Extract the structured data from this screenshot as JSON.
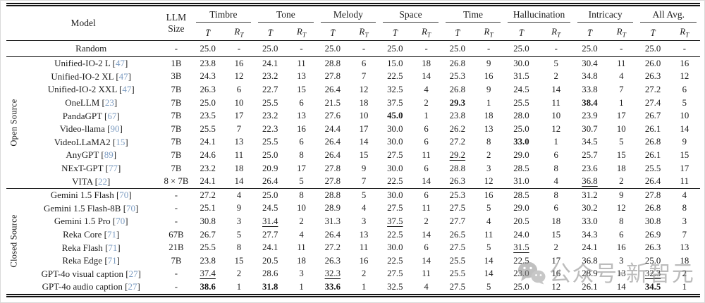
{
  "header": {
    "model": "Model",
    "llm1": "LLM",
    "llm2": "Size",
    "tbar": "T̄",
    "rmain": "R",
    "rsub": "T",
    "groups": [
      "Timbre",
      "Tone",
      "Melody",
      "Space",
      "Time",
      "Hallucination",
      "Intricacy",
      "All Avg."
    ]
  },
  "random": {
    "model": "Random",
    "size": "-",
    "cells": [
      "25.0",
      "-",
      "25.0",
      "-",
      "25.0",
      "-",
      "25.0",
      "-",
      "25.0",
      "-",
      "25.0",
      "-",
      "25.0",
      "-",
      "25.0",
      "-"
    ]
  },
  "sections": [
    {
      "label": "Open Source",
      "rows": [
        {
          "model": "Unified-IO-2 L",
          "cite": "47",
          "size": "1B",
          "cells": [
            "23.8",
            "16",
            "24.1",
            "11",
            "28.8",
            "6",
            "15.0",
            "18",
            "26.8",
            "9",
            "30.0",
            "5",
            "30.4",
            "11",
            "26.0",
            "16"
          ]
        },
        {
          "model": "Unified-IO-2 XL",
          "cite": "47",
          "size": "3B",
          "cells": [
            "24.3",
            "12",
            "23.2",
            "13",
            "27.8",
            "7",
            "22.5",
            "14",
            "25.3",
            "16",
            "31.5",
            "2",
            "34.8",
            "4",
            "26.3",
            "12"
          ]
        },
        {
          "model": "Unified-IO-2 XXL",
          "cite": "47",
          "size": "7B",
          "cells": [
            "26.3",
            "6",
            "22.7",
            "15",
            "26.4",
            "12",
            "32.5",
            "4",
            "26.8",
            "9",
            "24.5",
            "14",
            "33.8",
            "7",
            "27.2",
            "6"
          ]
        },
        {
          "model": "OneLLM",
          "cite": "23",
          "size": "7B",
          "cells": [
            "25.0",
            "10",
            "25.5",
            "6",
            "21.5",
            "18",
            "37.5",
            "2",
            "29.3",
            "1",
            "25.5",
            "11",
            "38.4",
            "1",
            "27.4",
            "5"
          ],
          "bold": [
            8,
            12
          ]
        },
        {
          "model": "PandaGPT",
          "cite": "67",
          "size": "7B",
          "cells": [
            "23.5",
            "17",
            "23.2",
            "13",
            "27.6",
            "10",
            "45.0",
            "1",
            "23.8",
            "18",
            "28.0",
            "10",
            "23.9",
            "17",
            "26.7",
            "10"
          ],
          "bold": [
            6
          ]
        },
        {
          "model": "Video-llama",
          "cite": "90",
          "size": "7B",
          "cells": [
            "25.5",
            "7",
            "22.3",
            "16",
            "24.4",
            "17",
            "30.0",
            "6",
            "26.2",
            "13",
            "25.0",
            "12",
            "30.7",
            "10",
            "26.1",
            "14"
          ]
        },
        {
          "model": "VideoLLaMA2",
          "cite": "15",
          "size": "7B",
          "cells": [
            "24.1",
            "13",
            "25.5",
            "6",
            "26.4",
            "14",
            "30.0",
            "6",
            "27.2",
            "8",
            "33.0",
            "1",
            "34.5",
            "5",
            "26.8",
            "9"
          ],
          "bold": [
            10
          ]
        },
        {
          "model": "AnyGPT",
          "cite": "89",
          "size": "7B",
          "cells": [
            "24.6",
            "11",
            "25.0",
            "8",
            "26.4",
            "15",
            "27.5",
            "11",
            "29.2",
            "2",
            "29.0",
            "6",
            "25.7",
            "15",
            "26.1",
            "15"
          ],
          "under": [
            8
          ]
        },
        {
          "model": "NExT-GPT",
          "cite": "77",
          "size": "7B",
          "cells": [
            "23.2",
            "18",
            "20.9",
            "17",
            "27.8",
            "9",
            "30.0",
            "6",
            "28.8",
            "3",
            "28.5",
            "8",
            "23.6",
            "18",
            "25.5",
            "17"
          ]
        },
        {
          "model": "VITA",
          "cite": "22",
          "size": "8 × 7B",
          "cells": [
            "24.1",
            "14",
            "26.4",
            "5",
            "27.8",
            "7",
            "22.5",
            "14",
            "26.3",
            "12",
            "31.0",
            "4",
            "36.8",
            "2",
            "26.4",
            "11"
          ],
          "under": [
            12
          ]
        }
      ]
    },
    {
      "label": "Closed Source",
      "rows": [
        {
          "model": "Gemini 1.5 Flash",
          "cite": "70",
          "size": "-",
          "cells": [
            "27.2",
            "4",
            "25.0",
            "8",
            "28.8",
            "5",
            "30.0",
            "6",
            "25.3",
            "16",
            "28.5",
            "8",
            "31.2",
            "9",
            "27.8",
            "4"
          ]
        },
        {
          "model": "Gemini 1.5 Flash-8B",
          "cite": "70",
          "size": "-",
          "cells": [
            "25.1",
            "9",
            "24.5",
            "10",
            "28.9",
            "4",
            "27.5",
            "11",
            "27.5",
            "5",
            "29.0",
            "6",
            "30.2",
            "12",
            "26.8",
            "8"
          ]
        },
        {
          "model": "Gemini 1.5 Pro",
          "cite": "70",
          "size": "-",
          "cells": [
            "30.8",
            "3",
            "31.4",
            "2",
            "31.3",
            "3",
            "37.5",
            "2",
            "27.7",
            "4",
            "20.5",
            "18",
            "33.0",
            "8",
            "30.8",
            "3"
          ],
          "under": [
            2,
            6
          ]
        },
        {
          "model": "Reka Core",
          "cite": "71",
          "size": "67B",
          "cells": [
            "26.7",
            "5",
            "27.7",
            "4",
            "26.4",
            "13",
            "22.5",
            "14",
            "26.5",
            "11",
            "24.0",
            "15",
            "34.3",
            "6",
            "26.9",
            "7"
          ]
        },
        {
          "model": "Reka Flash",
          "cite": "71",
          "size": "21B",
          "cells": [
            "25.5",
            "8",
            "24.1",
            "11",
            "27.2",
            "11",
            "30.0",
            "6",
            "27.5",
            "5",
            "31.5",
            "2",
            "24.1",
            "16",
            "26.3",
            "13"
          ],
          "under": [
            10
          ]
        },
        {
          "model": "Reka Edge",
          "cite": "71",
          "size": "7B",
          "cells": [
            "23.8",
            "15",
            "20.5",
            "18",
            "26.3",
            "16",
            "22.5",
            "14",
            "25.5",
            "14",
            "22.5",
            "17",
            "36.8",
            "3",
            "25.0",
            "18"
          ]
        },
        {
          "model": "GPT-4o visual caption",
          "cite": "27",
          "size": "-",
          "cells": [
            "37.4",
            "2",
            "28.6",
            "3",
            "32.3",
            "2",
            "27.5",
            "11",
            "25.5",
            "14",
            "23.0",
            "16",
            "28.9",
            "13",
            "32.3",
            "2"
          ],
          "under": [
            0,
            4,
            14
          ]
        },
        {
          "model": "GPT-4o audio caption",
          "cite": "27",
          "size": "-",
          "cells": [
            "38.6",
            "1",
            "31.8",
            "1",
            "33.6",
            "1",
            "32.5",
            "4",
            "27.5",
            "5",
            "25.0",
            "12",
            "26.1",
            "14",
            "34.5",
            "1"
          ],
          "bold": [
            0,
            2,
            4,
            14
          ]
        }
      ]
    }
  ],
  "watermark": {
    "icon": "wechat-icon",
    "text": "公众号·新智元"
  }
}
